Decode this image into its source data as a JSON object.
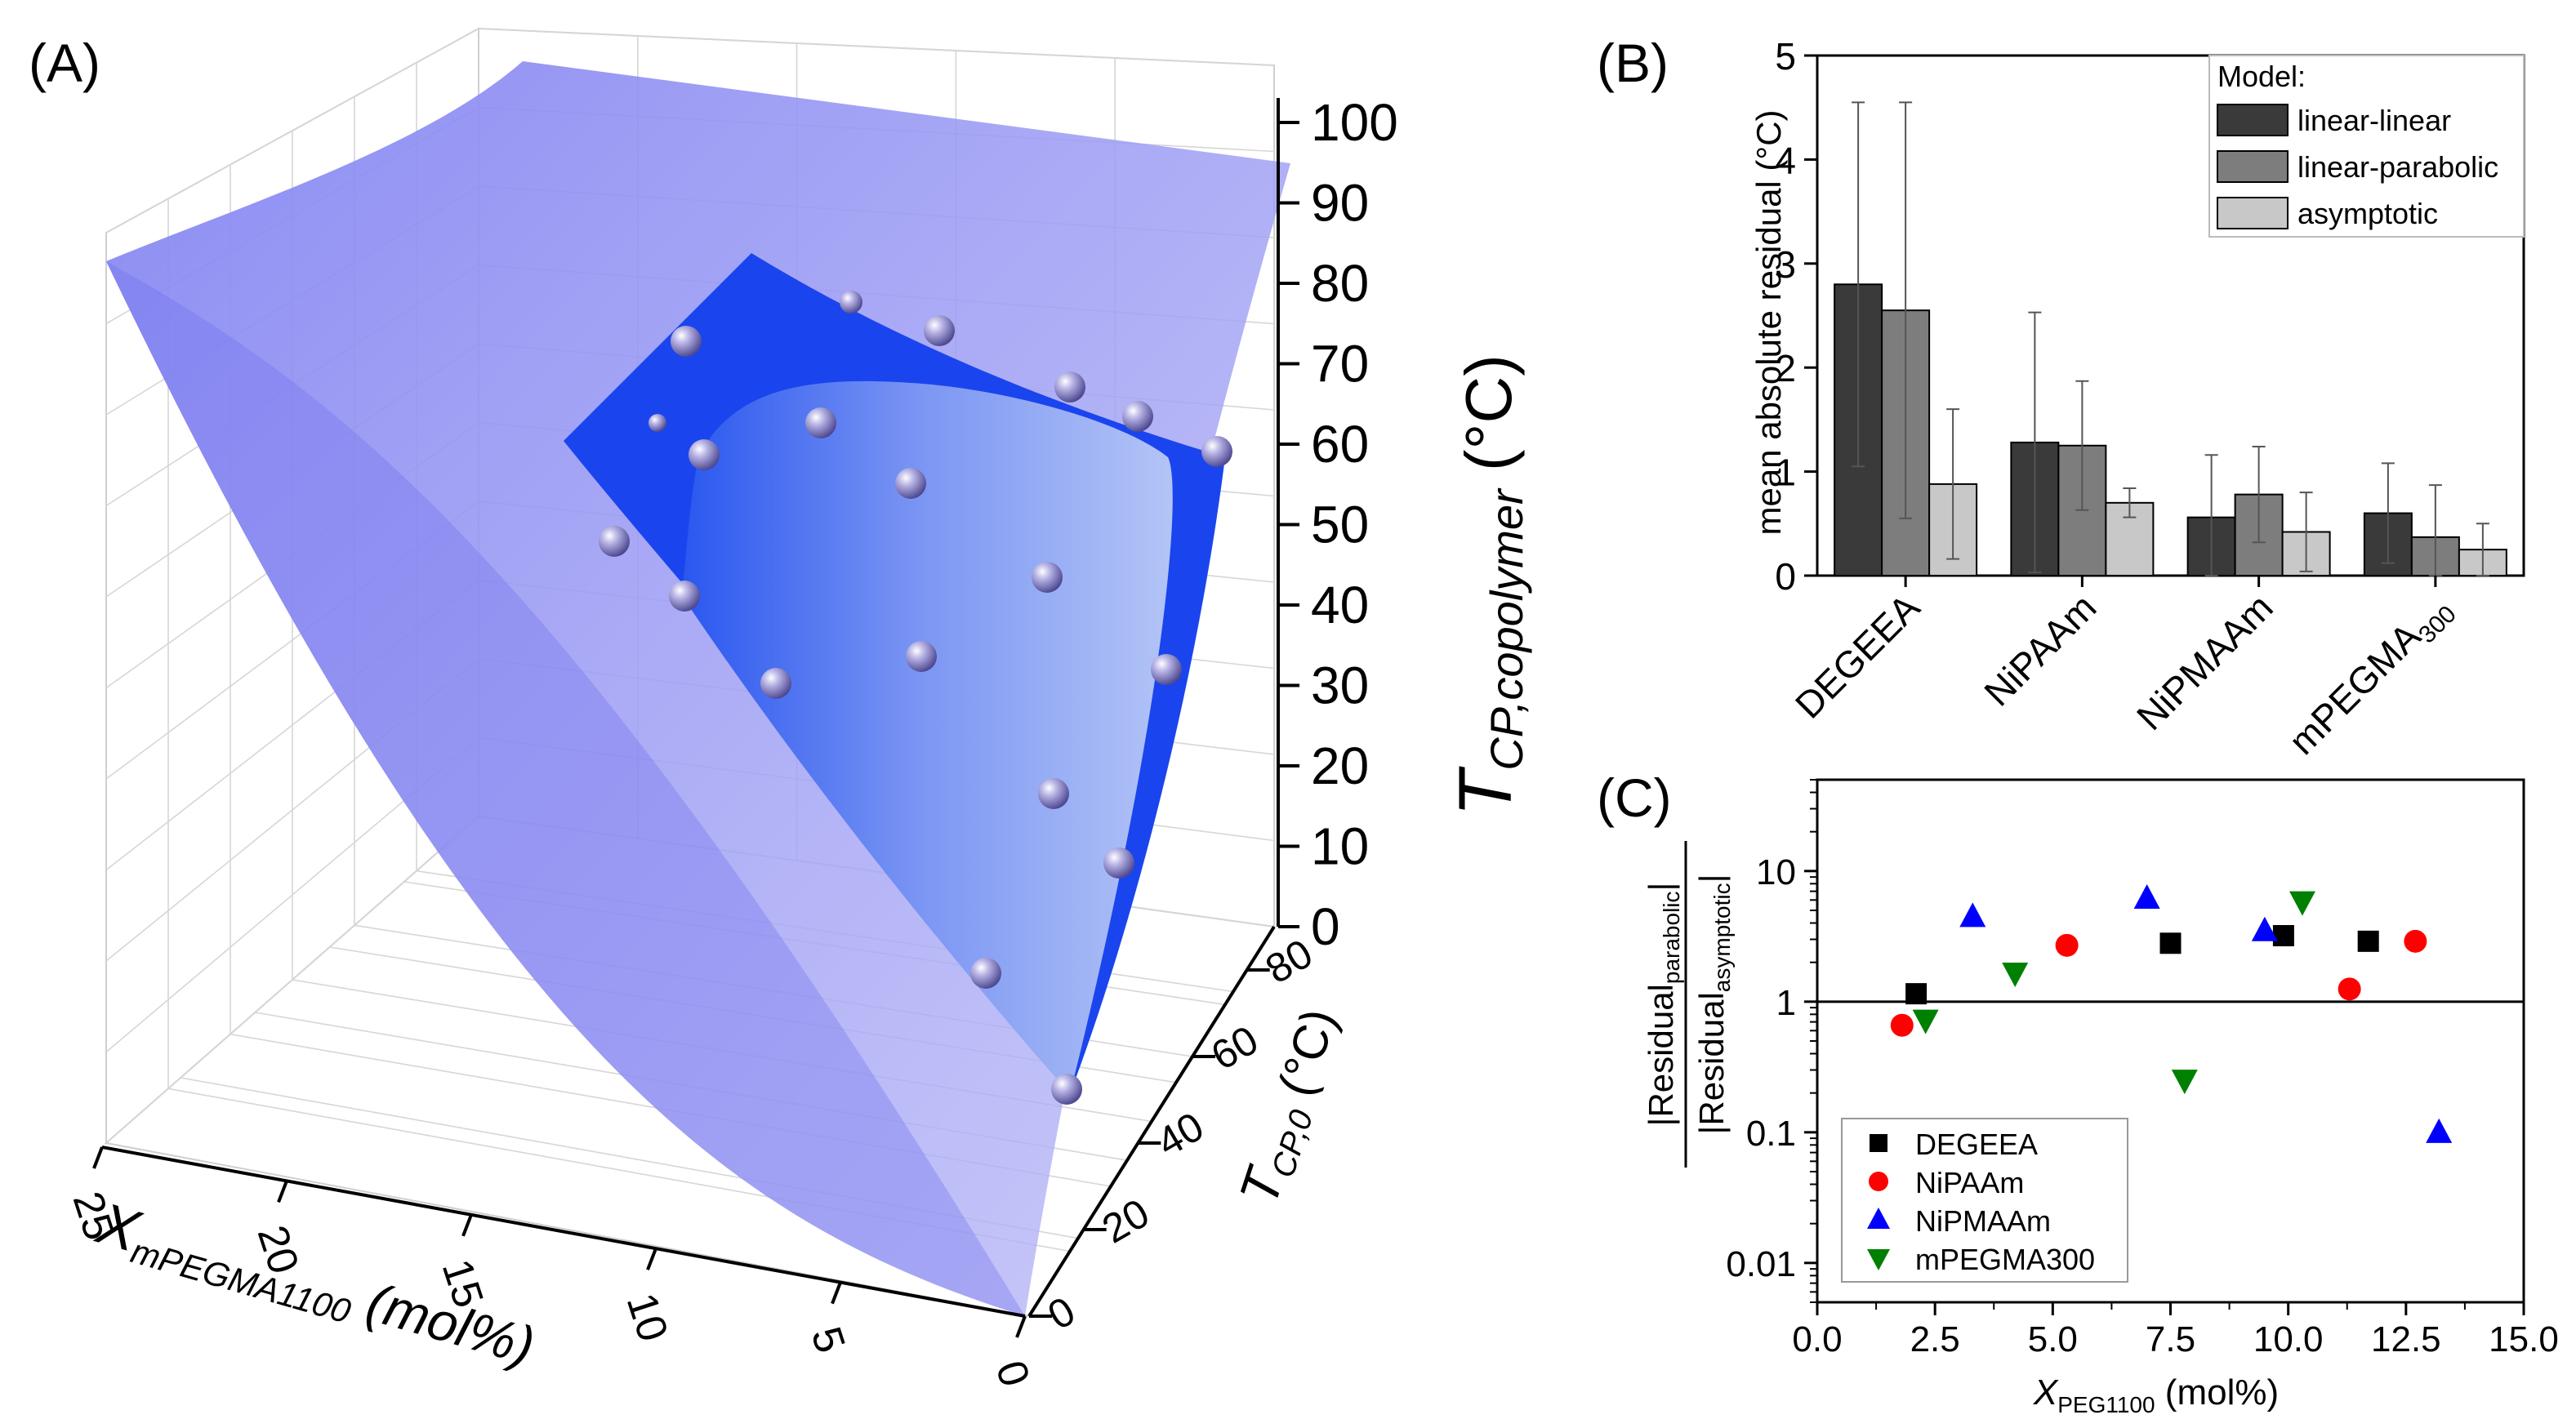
{
  "panels": {
    "a": "(A)",
    "b": "(B)",
    "c": "(C)"
  },
  "chart_data": [
    {
      "type": "surface3d",
      "panel": "(A)",
      "z_axis": {
        "label_main": "T",
        "label_sub": "CP,copolymer",
        "label_unit": " (°C)",
        "ticks": [
          0,
          10,
          20,
          30,
          40,
          50,
          60,
          70,
          80,
          90,
          100
        ],
        "range": [
          0,
          100
        ]
      },
      "y_axis": {
        "label_main": "T",
        "label_sub": "CP,0",
        "label_unit": " (°C)",
        "ticks": [
          0,
          20,
          40,
          60,
          80
        ],
        "range": [
          0,
          90
        ]
      },
      "x_axis": {
        "label_main": "X",
        "label_sub": "mPEGMA1100",
        "label_unit": " (mol%)",
        "ticks": [
          0,
          5,
          10,
          15,
          20,
          25
        ],
        "range": [
          0,
          25
        ]
      },
      "colors": {
        "outer_surface": "#8c8cf5",
        "inner_surface": "#1e50f0",
        "inner_surface_light": "#9ab2f5",
        "points": "#8a85c8"
      }
    },
    {
      "type": "bar",
      "panel": "(B)",
      "categories": [
        "DEGEEA",
        "NiPAAm",
        "NiPMAAm",
        "mPEGMA"
      ],
      "category_subscripts": [
        "",
        "",
        "",
        "300"
      ],
      "ylabel": "mean absolute residual (°C)",
      "ylim": [
        0,
        5
      ],
      "yticks": [
        0,
        1,
        2,
        3,
        4,
        5
      ],
      "legend_title": "Model:",
      "legend_position": "top-right",
      "series": [
        {
          "name": "linear-linear",
          "color": "#3a3a3a",
          "values": [
            2.8,
            1.28,
            0.56,
            0.6
          ],
          "errors": [
            1.75,
            1.25,
            0.6,
            0.48
          ]
        },
        {
          "name": "linear-parabolic",
          "color": "#7d7d7d",
          "values": [
            2.55,
            1.25,
            0.78,
            0.37
          ],
          "errors": [
            2.0,
            0.62,
            0.46,
            0.5
          ]
        },
        {
          "name": "asymptotic",
          "color": "#c8c8c8",
          "values": [
            0.88,
            0.7,
            0.42,
            0.25
          ],
          "errors": [
            0.72,
            0.14,
            0.38,
            0.25
          ]
        }
      ]
    },
    {
      "type": "scatter",
      "panel": "(C)",
      "xlabel_main": "X",
      "xlabel_sub": "PEG1100",
      "xlabel_unit": " (mol%)",
      "ylabel_numerator": "|Residual",
      "ylabel_numerator_sub": "parabolic",
      "ylabel_denominator": "|Residual",
      "ylabel_denominator_sub": "asymptotic",
      "xlim": [
        0,
        15
      ],
      "xticks": [
        "0.0",
        "2.5",
        "5.0",
        "7.5",
        "10.0",
        "12.5",
        "15.0"
      ],
      "ylim": [
        0.005,
        50
      ],
      "yscale": "log",
      "yticks": [
        "0.01",
        "0.1",
        "1",
        "10"
      ],
      "reference_line_y": 1,
      "legend_position": "bottom-left",
      "series": [
        {
          "name": "DEGEEA",
          "color": "#000000",
          "marker": "square",
          "x": [
            2.1,
            7.5,
            9.9,
            11.7
          ],
          "y": [
            1.15,
            2.8,
            3.2,
            2.9
          ]
        },
        {
          "name": "NiPAAm",
          "color": "#ff0000",
          "marker": "circle",
          "x": [
            1.8,
            5.3,
            11.3,
            12.7
          ],
          "y": [
            0.66,
            2.7,
            1.25,
            2.9
          ]
        },
        {
          "name": "NiPMAAm",
          "color": "#0000ff",
          "marker": "triangle-up",
          "x": [
            3.3,
            7.0,
            9.5,
            13.2
          ],
          "y": [
            4.5,
            6.2,
            3.5,
            0.1
          ]
        },
        {
          "name": "mPEGMA300",
          "color": "#008000",
          "marker": "triangle-down",
          "x": [
            2.3,
            4.2,
            7.8,
            10.3
          ],
          "y": [
            0.72,
            1.65,
            0.25,
            5.8
          ]
        }
      ]
    }
  ]
}
